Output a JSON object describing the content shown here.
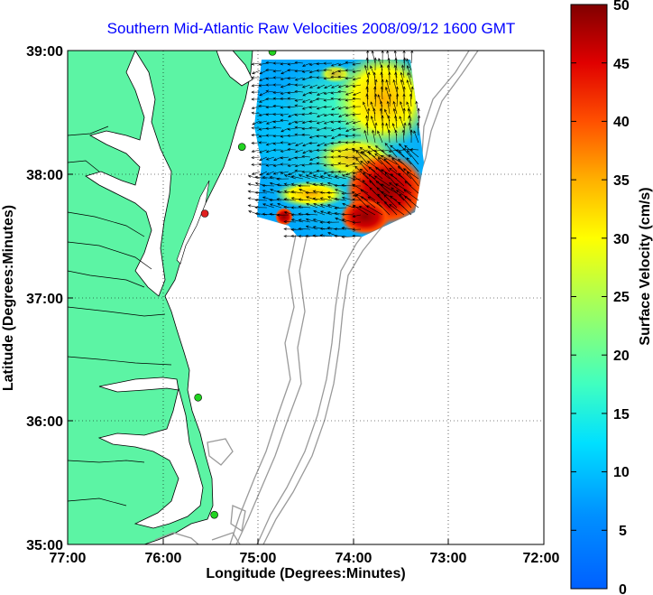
{
  "title": "Southern Mid-Atlantic Raw Velocities 2008/09/12 1600 GMT",
  "xlabel": "Longitude (Degrees:Minutes)",
  "ylabel": "Latitude (Degrees:Minutes)",
  "colorbar_label": "Surface Velocity (cm/s)",
  "x_ticks": [
    "77:00",
    "76:00",
    "75:00",
    "74:00",
    "73:00",
    "72:00"
  ],
  "y_ticks": [
    "39:00",
    "38:00",
    "37:00",
    "36:00",
    "35:00"
  ],
  "colorbar_ticks": [
    "50",
    "45",
    "40",
    "35",
    "30",
    "25",
    "20",
    "15",
    "10",
    "5",
    "0"
  ],
  "colors": {
    "land": "#5cf4a4",
    "coast": "#000000",
    "isobath": "#9a9a9a",
    "title": "#0000ff",
    "station_green": "#21d321",
    "station_red": "#e02020"
  },
  "chart_data": {
    "type": "heatmap",
    "title": "Southern Mid-Atlantic Raw Velocities 2008/09/12 1600 GMT",
    "xlabel": "Longitude (Degrees:Minutes)",
    "ylabel": "Latitude (Degrees:Minutes)",
    "xlim": [
      -77,
      -72
    ],
    "ylim": [
      35,
      39
    ],
    "colorbar": {
      "label": "Surface Velocity (cm/s)",
      "range": [
        0,
        50
      ],
      "colormap": "jet"
    },
    "grid": true,
    "field_extent": {
      "lon": [
        -75.05,
        -73.45
      ],
      "lat": [
        37.5,
        38.9
      ]
    },
    "velocity_regions": [
      {
        "area": "north-west",
        "speed_cm_s": 10
      },
      {
        "area": "north-central",
        "speed_cm_s": 15
      },
      {
        "area": "north-east",
        "speed_cm_s": 30
      },
      {
        "area": "central",
        "speed_cm_s": 20
      },
      {
        "area": "central-west jet",
        "speed_cm_s": 32
      },
      {
        "area": "south-east",
        "speed_cm_s": 48
      },
      {
        "area": "south",
        "speed_cm_s": 12
      }
    ],
    "stations": [
      {
        "lon": -74.85,
        "lat": 38.99,
        "status": "green"
      },
      {
        "lon": -75.17,
        "lat": 38.22,
        "status": "green"
      },
      {
        "lon": -75.56,
        "lat": 37.68,
        "status": "red"
      },
      {
        "lon": -75.63,
        "lat": 36.19,
        "status": "green"
      },
      {
        "lon": -75.46,
        "lat": 35.24,
        "status": "green"
      }
    ]
  }
}
